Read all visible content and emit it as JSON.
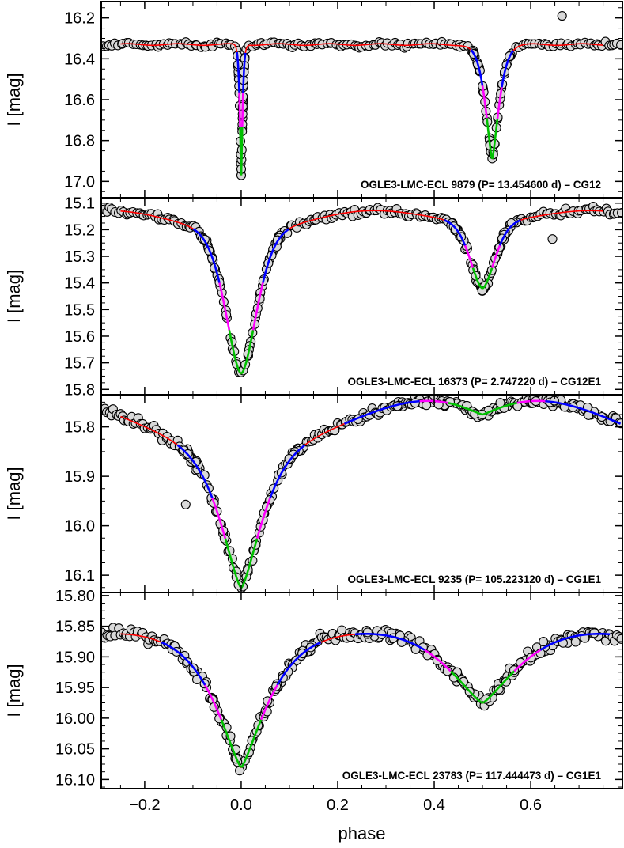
{
  "x_axis": {
    "label": "phase",
    "range": [
      -0.29,
      0.79
    ],
    "ticks": [
      {
        "value": -0.2,
        "label": "−0.2"
      },
      {
        "value": 0.0,
        "label": "0.0"
      },
      {
        "value": 0.2,
        "label": "0.2"
      },
      {
        "value": 0.4,
        "label": "0.4"
      },
      {
        "value": 0.6,
        "label": "0.6"
      }
    ]
  },
  "colors": {
    "points_fill": "#d9d9d9",
    "points_stroke": "#000000",
    "model": "#ff0000",
    "outer_segment": "#0000ff",
    "middle_segment": "#ff00ff",
    "inner_segment": "#00c000",
    "axes": "#000000"
  },
  "chart_data": [
    {
      "type": "scatter",
      "annotation": "OGLE3-LMC-ECL 9879  (P= 13.454600 d) – CG12",
      "ylabel": "I [mag]",
      "yrange": [
        16.12,
        17.08
      ],
      "y_inverted": true,
      "yticks": [
        {
          "value": 16.2,
          "label": "16.2"
        },
        {
          "value": 16.4,
          "label": "16.4"
        },
        {
          "value": 16.6,
          "label": "16.6"
        },
        {
          "value": 16.8,
          "label": "16.8"
        },
        {
          "value": 17.0,
          "label": "17.0"
        }
      ],
      "model": {
        "base": 16.33,
        "ripple": 0.004,
        "e1": {
          "phase": 0.0,
          "depth": 0.64,
          "width": 0.004,
          "shape": 1.3
        },
        "e2": {
          "phase": 0.52,
          "depth": 0.56,
          "width": 0.02,
          "shape": 1.4
        },
        "s1": 0,
        "s2": 0
      },
      "scatter_sigma": 0.01,
      "n_points": 170,
      "outliers": [
        {
          "x": 0.665,
          "y": 16.19
        },
        {
          "x": 0.0,
          "y": 16.97
        },
        {
          "x": 0.0,
          "y": 16.94
        }
      ]
    },
    {
      "type": "scatter",
      "annotation": "OGLE3-LMC-ECL 16373  (P= 2.747220 d) – CG12E1",
      "ylabel": "I [mag]",
      "yrange": [
        15.08,
        15.82
      ],
      "y_inverted": true,
      "yticks": [
        {
          "value": 15.1,
          "label": "15.1"
        },
        {
          "value": 15.2,
          "label": "15.2"
        },
        {
          "value": 15.3,
          "label": "15.3"
        },
        {
          "value": 15.4,
          "label": "15.4"
        },
        {
          "value": 15.5,
          "label": "15.5"
        },
        {
          "value": 15.6,
          "label": "15.6"
        },
        {
          "value": 15.7,
          "label": "15.7"
        },
        {
          "value": 15.8,
          "label": "15.8"
        }
      ],
      "model": {
        "base": 15.16,
        "ripple": 0,
        "e1": {
          "phase": 0.0,
          "depth": 0.53,
          "width": 0.045,
          "shape": 1.7
        },
        "e2": {
          "phase": 0.5,
          "depth": 0.25,
          "width": 0.036,
          "shape": 1.7
        },
        "s1": 0.02,
        "s2": 0.03
      },
      "scatter_sigma": 0.012,
      "n_points": 200,
      "outliers": [
        {
          "x": 0.645,
          "y": 15.235
        }
      ]
    },
    {
      "type": "scatter",
      "annotation": "OGLE3-LMC-ECL 9235  (P= 105.223120 d) – CG1E1",
      "ylabel": "I [mag]",
      "yrange": [
        15.735,
        16.135
      ],
      "y_inverted": true,
      "yticks": [
        {
          "value": 15.8,
          "label": "15.8"
        },
        {
          "value": 15.9,
          "label": "15.9"
        },
        {
          "value": 16.0,
          "label": "16.0"
        },
        {
          "value": 16.1,
          "label": "16.1"
        }
      ],
      "model": {
        "base": 15.77,
        "ripple": 0,
        "e1": {
          "phase": 0.0,
          "depth": 0.28,
          "width": 0.06,
          "shape": 1.4
        },
        "e2": {
          "phase": 0.5,
          "depth": 0.08,
          "width": 0.13,
          "shape": 1.2
        },
        "s1": 0.075,
        "s2": 0
      },
      "scatter_sigma": 0.008,
      "n_points": 230,
      "outliers": [
        {
          "x": -0.115,
          "y": 15.957
        }
      ]
    },
    {
      "type": "scatter",
      "annotation": "OGLE3-LMC-ECL 23783  (P= 117.444473 d) – CG1E1",
      "ylabel": "I [mag]",
      "yrange": [
        15.795,
        16.115
      ],
      "y_inverted": true,
      "yticks": [
        {
          "value": 15.8,
          "label": "15.80"
        },
        {
          "value": 15.85,
          "label": "15.85"
        },
        {
          "value": 15.9,
          "label": "15.90"
        },
        {
          "value": 15.95,
          "label": "15.95"
        },
        {
          "value": 16.0,
          "label": "16.00"
        },
        {
          "value": 16.05,
          "label": "16.05"
        },
        {
          "value": 16.1,
          "label": "16.10"
        }
      ],
      "model": {
        "base": 15.85,
        "ripple": 0,
        "e1": {
          "phase": 0.0,
          "depth": 0.21,
          "width": 0.075,
          "shape": 1.3
        },
        "e2": {
          "phase": 0.5,
          "depth": 0.145,
          "width": 0.12,
          "shape": 1.3
        },
        "s1": 0.02,
        "s2": 0
      },
      "scatter_sigma": 0.008,
      "n_points": 230,
      "outliers": []
    }
  ]
}
